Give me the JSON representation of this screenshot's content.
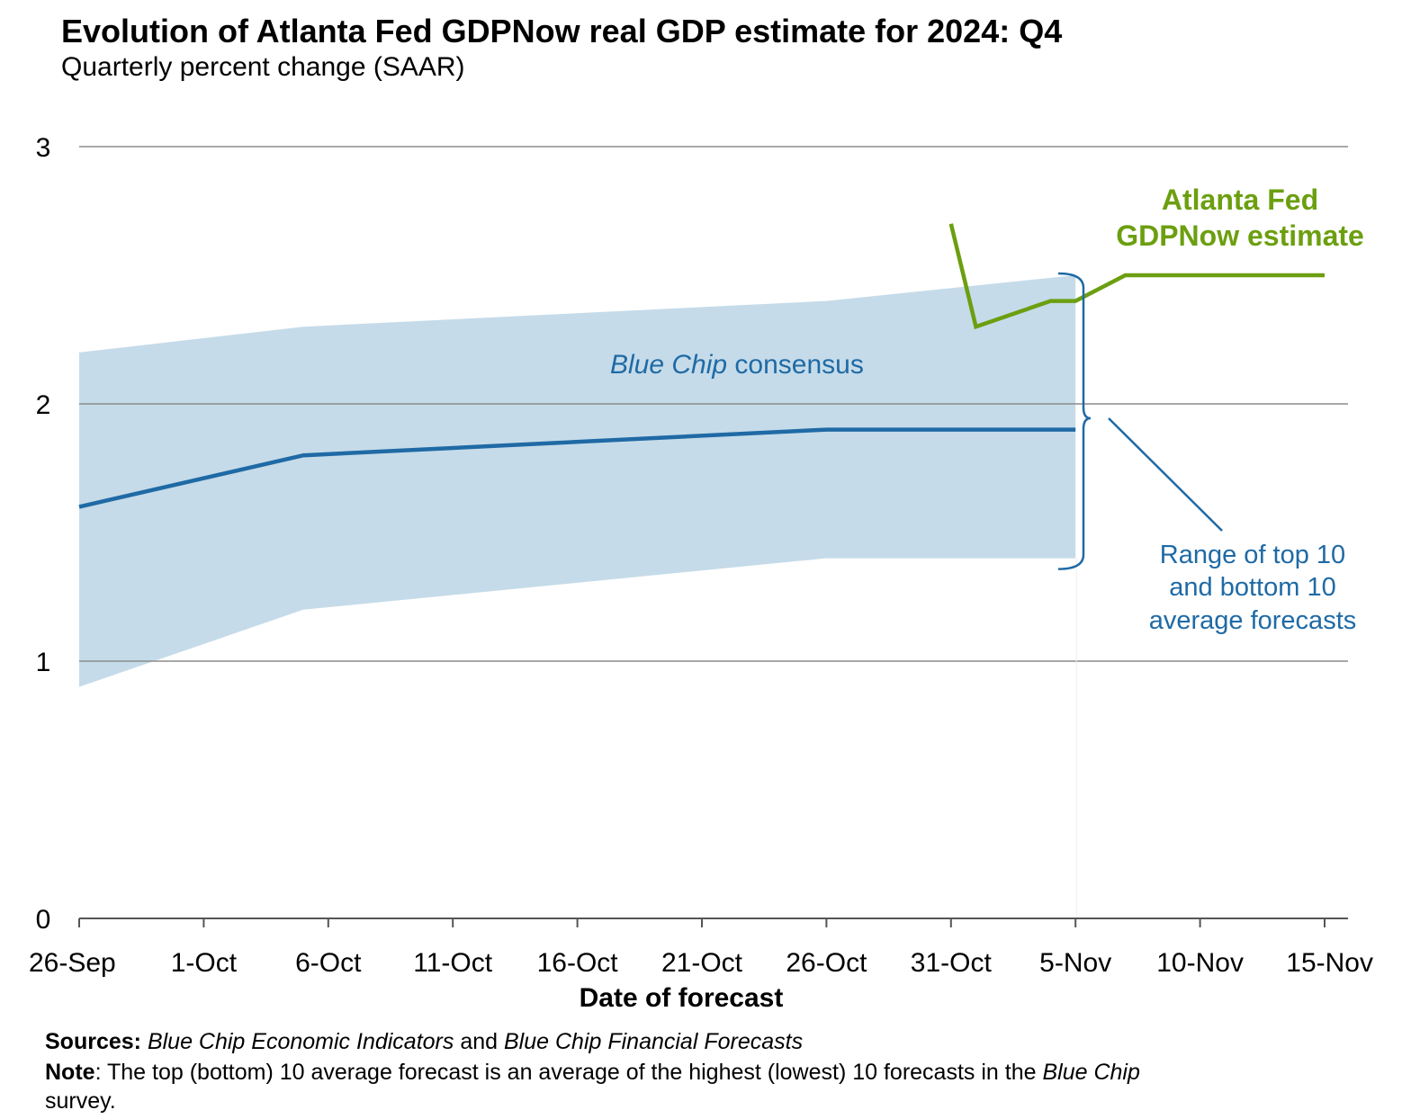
{
  "title": "Evolution of Atlanta Fed GDPNow real GDP estimate for 2024: Q4",
  "subtitle": "Quarterly percent change (SAAR)",
  "chart_data": {
    "type": "line",
    "title": "Evolution of Atlanta Fed GDPNow real GDP estimate for 2024: Q4",
    "ylabel": "Quarterly percent change (SAAR)",
    "xlabel": "Date of forecast",
    "ylim": [
      0,
      3
    ],
    "yticks": [
      "0",
      "1",
      "2",
      "3"
    ],
    "x_tick_labels": [
      "26-Sep",
      "1-Oct",
      "6-Oct",
      "11-Oct",
      "16-Oct",
      "21-Oct",
      "26-Oct",
      "31-Oct",
      "5-Nov",
      "10-Nov",
      "15-Nov"
    ],
    "x_tick_day_offsets": [
      0,
      5,
      10,
      15,
      20,
      25,
      30,
      35,
      40,
      45,
      50
    ],
    "grid": true,
    "colors": {
      "band": "#c5dbe9",
      "consensus": "#1f6aa5",
      "gdpnow": "#6c9f10",
      "grid": "#8c8c8c",
      "annotation": "#1f6aa5"
    },
    "series": [
      {
        "name": "Blue Chip consensus",
        "kind": "line",
        "x_day_offsets": [
          0,
          9,
          30,
          40
        ],
        "values": [
          1.6,
          1.8,
          1.9,
          1.9
        ]
      },
      {
        "name": "Range of top 10 and bottom 10 average forecasts",
        "kind": "band",
        "x_day_offsets": [
          0,
          9,
          30,
          40
        ],
        "upper": [
          2.2,
          2.3,
          2.4,
          2.5
        ],
        "lower": [
          0.9,
          1.2,
          1.4,
          1.4
        ]
      },
      {
        "name": "Atlanta Fed GDPNow estimate",
        "kind": "line",
        "x_day_offsets": [
          35,
          36,
          39,
          40,
          42,
          50
        ],
        "values": [
          2.7,
          2.3,
          2.4,
          2.4,
          2.5,
          2.5
        ]
      }
    ],
    "annotations": {
      "band_label_italic": "Blue Chip",
      "band_label_rest": " consensus",
      "gdpnow_label_line1": "Atlanta Fed",
      "gdpnow_label_line2": "GDPNow estimate",
      "range_label_line1": "Range of top 10",
      "range_label_line2": "and bottom 10",
      "range_label_line3": "average forecasts"
    }
  },
  "footer": {
    "sources_label": "Sources:",
    "sources_part1": "Blue Chip Economic Indicators",
    "sources_part2": " and ",
    "sources_part3": "Blue Chip Financial Forecasts",
    "note_label": "Note",
    "note_part1": ": The top (bottom) 10 average forecast is an average of the highest (lowest) 10 forecasts in the ",
    "note_part2": "Blue Chip",
    "note_part3": "survey."
  }
}
